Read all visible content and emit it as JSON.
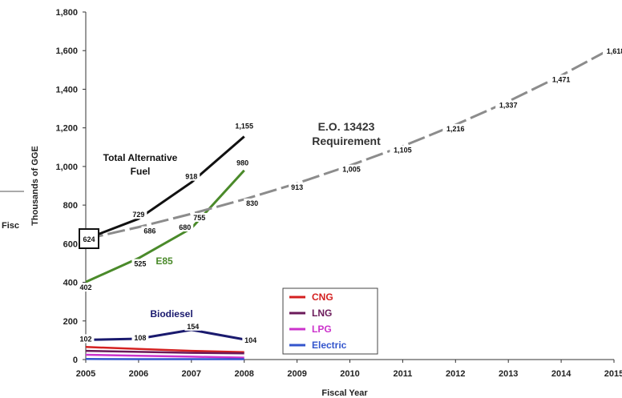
{
  "chart_data": {
    "type": "line",
    "xlabel": "Fiscal Year",
    "ylabel": "Thousands of GGE",
    "ylim": [
      0,
      1800
    ],
    "xlim": [
      2005,
      2015
    ],
    "x_ticks": [
      "2005",
      "2006",
      "2007",
      "2008",
      "2009",
      "2010",
      "2011",
      "2012",
      "2013",
      "2014",
      "2015"
    ],
    "y_ticks": [
      "0",
      "200",
      "400",
      "600",
      "800",
      "1,000",
      "1,200",
      "1,400",
      "1,600",
      "1,800"
    ],
    "grid": false,
    "series": [
      {
        "key": "total",
        "color": "#111111",
        "x": [
          2005,
          2006,
          2007,
          2008
        ],
        "values": [
          624,
          729,
          918,
          1155
        ],
        "labels": [
          "624",
          "729",
          "918",
          "1,155"
        ]
      },
      {
        "key": "eo",
        "color": "#8c8c8c",
        "dashed": true,
        "x": [
          2005,
          2006,
          2007,
          2008,
          2009,
          2010,
          2011,
          2012,
          2013,
          2014,
          2015
        ],
        "values": [
          624,
          686,
          755,
          830,
          913,
          1005,
          1105,
          1216,
          1337,
          1471,
          1618
        ],
        "labels": [
          "",
          "686",
          "755",
          "830",
          "913",
          "1,005",
          "1,105",
          "1,216",
          "1,337",
          "1,471",
          "1,618"
        ]
      },
      {
        "key": "e85",
        "color": "#4a8a2a",
        "x": [
          2005,
          2006,
          2007,
          2008
        ],
        "values": [
          402,
          525,
          680,
          980
        ],
        "labels": [
          "402",
          "525",
          "680",
          "980"
        ]
      },
      {
        "key": "biodiesel",
        "color": "#1a1a6e",
        "x": [
          2005,
          2006,
          2007,
          2008
        ],
        "values": [
          102,
          108,
          154,
          104
        ],
        "labels": [
          "102",
          "108",
          "154",
          "104"
        ]
      },
      {
        "name": "CNG",
        "color": "#d42020",
        "x": [
          2005,
          2006,
          2007,
          2008
        ],
        "values": [
          65,
          55,
          45,
          38
        ]
      },
      {
        "name": "LNG",
        "color": "#6b1a5a",
        "x": [
          2005,
          2006,
          2007,
          2008
        ],
        "values": [
          45,
          40,
          35,
          32
        ]
      },
      {
        "name": "LPG",
        "color": "#cc33cc",
        "x": [
          2005,
          2006,
          2007,
          2008
        ],
        "values": [
          25,
          20,
          15,
          10
        ]
      },
      {
        "name": "Electric",
        "color": "#3355cc",
        "x": [
          2005,
          2006,
          2007,
          2008
        ],
        "values": [
          3,
          2,
          2,
          2
        ]
      }
    ],
    "annotations": {
      "total_l1": "Total Alternative",
      "total_l2": "Fuel",
      "eo_l1": "E.O. 13423",
      "eo_l2": "Requirement",
      "e85": "E85",
      "biodiesel": "Biodiesel"
    },
    "legend": {
      "placement": "bottom-center",
      "items": [
        {
          "label": "CNG",
          "color": "#d42020"
        },
        {
          "label": "LNG",
          "color": "#6b1a5a"
        },
        {
          "label": "LPG",
          "color": "#cc33cc"
        },
        {
          "label": "Electric",
          "color": "#3355cc"
        }
      ]
    },
    "cropped_left_text": "Fisc"
  }
}
